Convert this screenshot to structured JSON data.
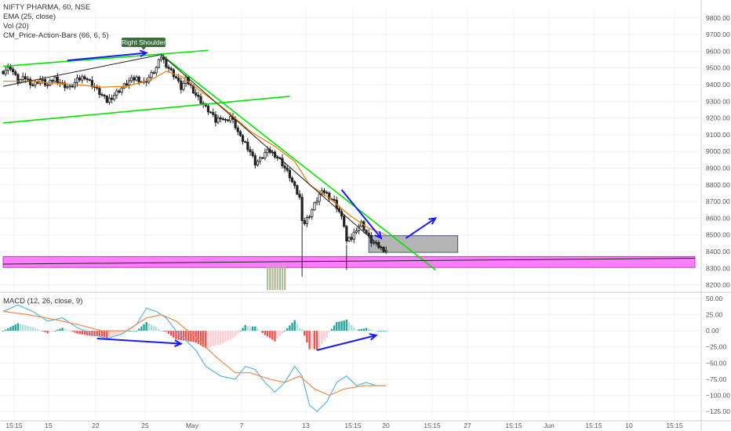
{
  "legend": {
    "symbol": "NIFTY PHARMA, 60, NSE",
    "ema": "EMA (25, close)",
    "vol": "Vol (20)",
    "cm": "CM_Price-Action-Bars (66, 6, 5)",
    "macd": "MACD (12, 26, close, 9)"
  },
  "annotation": {
    "right_shoulder": "Right Shoulder"
  },
  "colors": {
    "up": "#26a69a",
    "down": "#ef5350",
    "candle": "#222222",
    "ema": "#f57c00",
    "trend": "#00e600",
    "arrow": "#1a1aff",
    "zone": "#ff66ff",
    "box": "#a8a8a8",
    "macd": "#5ab4e0",
    "signal": "#f08a4b"
  },
  "chart_data": [
    {
      "type": "candlestick",
      "name": "price",
      "x_ticks": [
        "15:15",
        "15",
        "22",
        "25",
        "May",
        "7",
        "13",
        "15:15",
        "20",
        "15:15",
        "27",
        "15:15",
        "Jun",
        "15:15",
        "10",
        "15:15"
      ],
      "y_ticks": [
        "9800.00",
        "9700.00",
        "9600.00",
        "9500.00",
        "9400.00",
        "9300.00",
        "9200.00",
        "9100.00",
        "9000.00",
        "8900.00",
        "8800.00",
        "8700.00",
        "8600.00",
        "8500.00",
        "8400.00",
        "8300.00",
        "8200.00"
      ],
      "ylim": [
        8170,
        9860
      ],
      "price_path": [
        [
          0,
          9480
        ],
        [
          3,
          9505
        ],
        [
          6,
          9420
        ],
        [
          9,
          9440
        ],
        [
          12,
          9400
        ],
        [
          15,
          9430
        ],
        [
          18,
          9395
        ],
        [
          21,
          9440
        ],
        [
          24,
          9400
        ],
        [
          27,
          9380
        ],
        [
          30,
          9425
        ],
        [
          33,
          9450
        ],
        [
          36,
          9400
        ],
        [
          39,
          9350
        ],
        [
          42,
          9300
        ],
        [
          45,
          9340
        ],
        [
          48,
          9380
        ],
        [
          51,
          9420
        ],
        [
          54,
          9440
        ],
        [
          57,
          9410
        ],
        [
          60,
          9460
        ],
        [
          62,
          9500
        ],
        [
          64,
          9570
        ],
        [
          66,
          9520
        ],
        [
          68,
          9480
        ],
        [
          70,
          9440
        ],
        [
          72,
          9380
        ],
        [
          74,
          9430
        ],
        [
          76,
          9390
        ],
        [
          78,
          9340
        ],
        [
          80,
          9300
        ],
        [
          82,
          9260
        ],
        [
          84,
          9230
        ],
        [
          86,
          9180
        ],
        [
          88,
          9210
        ],
        [
          90,
          9180
        ],
        [
          92,
          9210
        ],
        [
          94,
          9150
        ],
        [
          96,
          9080
        ],
        [
          98,
          9050
        ],
        [
          100,
          9000
        ],
        [
          102,
          8930
        ],
        [
          104,
          8950
        ],
        [
          106,
          8990
        ],
        [
          108,
          9000
        ],
        [
          110,
          8980
        ],
        [
          112,
          8950
        ],
        [
          114,
          8900
        ],
        [
          116,
          8850
        ],
        [
          118,
          8780
        ],
        [
          120,
          8720
        ],
        [
          121,
          8600
        ],
        [
          122,
          8570
        ],
        [
          124,
          8620
        ],
        [
          126,
          8680
        ],
        [
          128,
          8740
        ],
        [
          130,
          8760
        ],
        [
          132,
          8730
        ],
        [
          134,
          8700
        ],
        [
          136,
          8640
        ],
        [
          138,
          8560
        ],
        [
          139,
          8460
        ],
        [
          141,
          8480
        ],
        [
          143,
          8540
        ],
        [
          145,
          8570
        ],
        [
          147,
          8510
        ],
        [
          149,
          8460
        ],
        [
          151,
          8440
        ],
        [
          153,
          8420
        ],
        [
          155,
          8410
        ]
      ],
      "ema_path": [
        [
          0,
          9420
        ],
        [
          10,
          9420
        ],
        [
          20,
          9410
        ],
        [
          30,
          9400
        ],
        [
          40,
          9385
        ],
        [
          50,
          9390
        ],
        [
          60,
          9430
        ],
        [
          66,
          9480
        ],
        [
          72,
          9450
        ],
        [
          80,
          9360
        ],
        [
          90,
          9250
        ],
        [
          100,
          9120
        ],
        [
          110,
          9030
        ],
        [
          118,
          8940
        ],
        [
          124,
          8800
        ],
        [
          132,
          8720
        ],
        [
          140,
          8620
        ],
        [
          148,
          8540
        ],
        [
          155,
          8500
        ]
      ],
      "trendlines": [
        {
          "from": [
            0,
            9510
          ],
          "to": [
            83,
            9605
          ],
          "color": "trend"
        },
        {
          "from": [
            0,
            9170
          ],
          "to": [
            116,
            9330
          ],
          "color": "trend"
        },
        {
          "from": [
            64,
            9580
          ],
          "to": [
            175,
            8290
          ],
          "color": "trend"
        },
        {
          "from": [
            0,
            9390
          ],
          "to": [
            64,
            9580
          ],
          "color": "candle"
        },
        {
          "from": [
            64,
            9580
          ],
          "to": [
            155,
            8400
          ],
          "color": "candle"
        },
        {
          "from": [
            0,
            8325
          ],
          "to": [
            280,
            8360
          ],
          "color": "candle"
        }
      ],
      "arrows": [
        {
          "from": [
            26,
            9545
          ],
          "to": [
            58,
            9590
          ]
        },
        {
          "from": [
            137,
            8770
          ],
          "to": [
            153,
            8480
          ]
        },
        {
          "from": [
            163,
            8480
          ],
          "to": [
            175,
            8600
          ]
        }
      ],
      "zones": [
        {
          "y": [
            8305,
            8370
          ],
          "x": [
            0,
            280
          ],
          "color": "zone"
        },
        {
          "y": [
            8395,
            8495
          ],
          "x": [
            148,
            184
          ],
          "color": "box"
        }
      ],
      "volume": {
        "x": [
          107,
          114
        ],
        "y": [
          8170,
          8310
        ]
      }
    },
    {
      "type": "macd",
      "name": "MACD",
      "y_ticks": [
        "50.00",
        "25.00",
        "0.00",
        "−25.00",
        "−50.00",
        "−75.00",
        "−100.00",
        "−125.00"
      ],
      "ylim": [
        -137,
        56
      ],
      "macd_path": [
        [
          0,
          30
        ],
        [
          6,
          40
        ],
        [
          12,
          30
        ],
        [
          18,
          15
        ],
        [
          24,
          20
        ],
        [
          30,
          5
        ],
        [
          36,
          -5
        ],
        [
          42,
          -12
        ],
        [
          48,
          -5
        ],
        [
          54,
          10
        ],
        [
          58,
          35
        ],
        [
          62,
          30
        ],
        [
          66,
          20
        ],
        [
          70,
          0
        ],
        [
          74,
          -15
        ],
        [
          78,
          -30
        ],
        [
          82,
          -55
        ],
        [
          88,
          -70
        ],
        [
          94,
          -75
        ],
        [
          98,
          -55
        ],
        [
          102,
          -60
        ],
        [
          106,
          -80
        ],
        [
          110,
          -95
        ],
        [
          114,
          -80
        ],
        [
          118,
          -55
        ],
        [
          121,
          -70
        ],
        [
          124,
          -115
        ],
        [
          127,
          -125
        ],
        [
          131,
          -110
        ],
        [
          135,
          -80
        ],
        [
          139,
          -70
        ],
        [
          143,
          -85
        ],
        [
          147,
          -80
        ],
        [
          151,
          -85
        ],
        [
          155,
          -85
        ]
      ],
      "signal_path": [
        [
          0,
          30
        ],
        [
          10,
          25
        ],
        [
          20,
          18
        ],
        [
          30,
          10
        ],
        [
          40,
          0
        ],
        [
          50,
          0
        ],
        [
          58,
          20
        ],
        [
          64,
          25
        ],
        [
          70,
          15
        ],
        [
          78,
          -10
        ],
        [
          86,
          -40
        ],
        [
          94,
          -65
        ],
        [
          100,
          -65
        ],
        [
          108,
          -75
        ],
        [
          114,
          -80
        ],
        [
          120,
          -70
        ],
        [
          126,
          -90
        ],
        [
          132,
          -100
        ],
        [
          138,
          -90
        ],
        [
          146,
          -85
        ],
        [
          155,
          -85
        ]
      ],
      "arrows": [
        {
          "from": [
            38,
            -12
          ],
          "to": [
            72,
            -20
          ]
        },
        {
          "from": [
            127,
            -30
          ],
          "to": [
            151,
            -7
          ]
        }
      ]
    }
  ]
}
